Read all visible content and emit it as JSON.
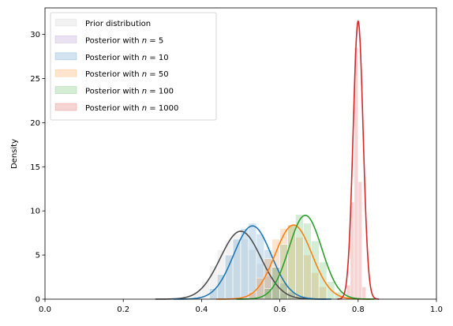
{
  "chart_data": {
    "type": "histogram",
    "title": "",
    "xlabel": "",
    "ylabel": "Density",
    "xlim": [
      0.0,
      1.0
    ],
    "ylim": [
      0,
      33
    ],
    "xticks": [
      0.0,
      0.2,
      0.4,
      0.6,
      0.8,
      1.0
    ],
    "xtick_labels": [
      "0.0",
      "0.2",
      "0.4",
      "0.6",
      "0.8",
      "1.0"
    ],
    "yticks": [
      0,
      5,
      10,
      15,
      20,
      25,
      30
    ],
    "ytick_labels": [
      "0",
      "5",
      "10",
      "15",
      "20",
      "25",
      "30"
    ],
    "grid": false,
    "legend_position": "top-left",
    "series": [
      {
        "name": "Prior distribution",
        "label_prefix": "Prior distribution",
        "label_n": "",
        "color": "#4d4d4d",
        "hist_color": "#bfbfbf",
        "mean": 0.5,
        "sd": 0.052,
        "peak": 7.7,
        "bins": {
          "start": 0.38,
          "width": 0.02,
          "heights": [
            0.8,
            2.0,
            3.8,
            5.6,
            6.6,
            7.4,
            6.8,
            5.6,
            4.0,
            2.6,
            1.4,
            0.6
          ]
        }
      },
      {
        "name": "Posterior with n = 5",
        "label_prefix": "Posterior with ",
        "label_n": "5",
        "color": "#9467bd",
        "hist_color": "#9467bd",
        "mean": 0.53,
        "sd": 0.048,
        "peak": 8.3,
        "bins": {
          "start": 0.42,
          "width": 0.02,
          "heights": []
        }
      },
      {
        "name": "Posterior with n = 10",
        "label_prefix": "Posterior with ",
        "label_n": "10",
        "color": "#1f77b4",
        "hist_color": "#1f77b4",
        "mean": 0.53,
        "sd": 0.048,
        "peak": 8.3,
        "bins": {
          "start": 0.42,
          "width": 0.02,
          "heights": [
            1.2,
            2.8,
            5.0,
            6.8,
            8.0,
            8.6,
            7.4,
            5.6,
            3.6,
            1.8,
            0.8
          ]
        }
      },
      {
        "name": "Posterior with n = 50",
        "label_prefix": "Posterior with ",
        "label_n": "50",
        "color": "#ff7f0e",
        "hist_color": "#ff7f0e",
        "mean": 0.635,
        "sd": 0.047,
        "peak": 8.4,
        "bins": {
          "start": 0.52,
          "width": 0.02,
          "heights": [
            0.8,
            2.4,
            4.6,
            6.8,
            8.0,
            8.4,
            7.0,
            5.0,
            3.0,
            1.4
          ]
        }
      },
      {
        "name": "Posterior with n = 100",
        "label_prefix": "Posterior with ",
        "label_n": "100",
        "color": "#2ca02c",
        "hist_color": "#2ca02c",
        "mean": 0.665,
        "sd": 0.042,
        "peak": 9.5,
        "bins": {
          "start": 0.56,
          "width": 0.02,
          "heights": [
            1.2,
            3.6,
            6.2,
            8.4,
            9.6,
            8.6,
            6.6,
            4.2,
            2.0,
            0.8
          ]
        }
      },
      {
        "name": "Posterior with n = 1000",
        "label_prefix": "Posterior with ",
        "label_n": "1000",
        "color": "#d62728",
        "hist_color": "#d62728",
        "mean": 0.8,
        "sd": 0.0127,
        "peak": 31.5,
        "bins": {
          "start": 0.77,
          "width": 0.01,
          "heights": [
            1.6,
            11.0,
            28.5,
            13.3,
            1.4
          ]
        }
      }
    ]
  }
}
